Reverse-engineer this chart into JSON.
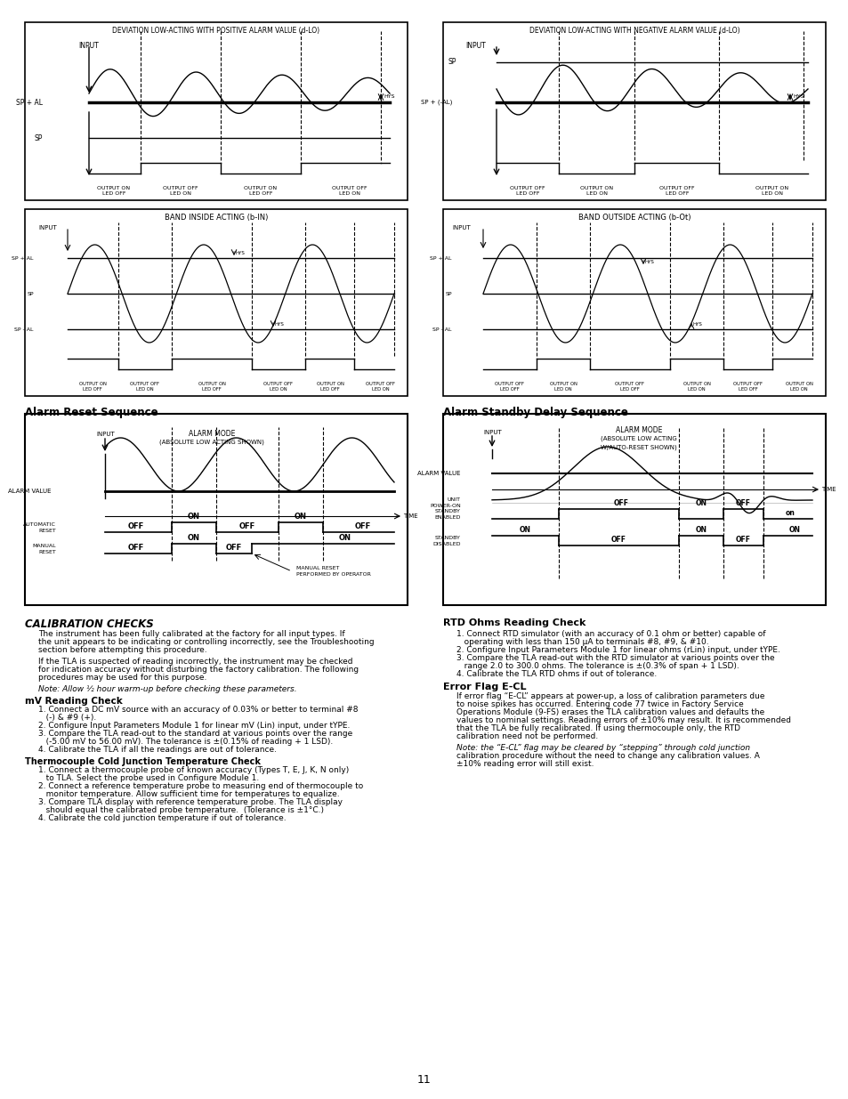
{
  "page_bg": "#ffffff",
  "border_color": "#000000",
  "text_color": "#000000",
  "title_top_left": "DEVIATION LOW-ACTING WITH POSITIVE ALARM VALUE (d-LO)",
  "title_top_right": "DEVIATION LOW-ACTING WITH NEGATIVE ALARM VALUE (d-LO)",
  "title_mid_left": "BAND INSIDE ACTING (b-IN)",
  "title_mid_right": "BAND OUTSIDE ACTING (b-Ot)",
  "section_alarm_reset": "Alarm Reset Sequence",
  "section_alarm_standby": "Alarm Standby Delay Sequence",
  "section_cal": "CALIBRATION CHECKS",
  "cal_p1": "The instrument has been fully calibrated at the factory for all input types. If the unit appears to be indicating or controlling incorrectly, see the Troubleshooting section before attempting this procedure.",
  "cal_p2": "If the TLA is suspected of reading incorrectly, the instrument may be checked for indication accuracy without disturbing the factory calibration. The following procedures may be used for this purpose.",
  "cal_note": "Note: Allow ½ hour warm-up before checking these parameters.",
  "mv_title": "mV Reading Check",
  "mv_text": "1. Connect a DC mV source with an accuracy of 0.03% or better to terminal #8 (-) & #9 (+).\n2. Configure Input Parameters Module 1 for linear mV (Lin) input, under tYPE.\n3. Compare the TLA read-out to the standard at various points over the range (-5.00 mV to 56.00 mV). The tolerance is ±(0.15% of reading + 1 LSD).\n4. Calibrate the TLA if all the readings are out of tolerance.",
  "tc_title": "Thermocouple Cold Junction Temperature Check",
  "tc_text": "1. Connect a thermocouple probe of known accuracy (Types T, E, J, K, N only) to TLA. Select the probe used in Configure Module 1.\n2. Connect a reference temperature probe to measuring end of thermocouple to monitor temperature. Allow sufficient time for temperatures to equalize.\n3. Compare TLA display with reference temperature probe. The TLA display should equal the calibrated probe temperature. (Tolerance is ±1°C.)\n4. Calibrate the cold junction temperature if out of tolerance.",
  "rtd_title": "RTD Ohms Reading Check",
  "rtd_text": "1. Connect RTD simulator (with an accuracy of 0.1 ohm or better) capable of operating with less than 150 μA to terminals #8, #9, & #10.\n2. Configure Input Parameters Module 1 for linear ohms (rLin) input, under tYPE.\n3. Compare the TLA read-out with the RTD simulator at various points over the range 2.0 to 300.0 ohms. The tolerance is ±(0.3% of span + 1 LSD).\n4. Calibrate the TLA RTD ohms if out of tolerance.",
  "ecl_title": "Error Flag E-CL",
  "ecl_text": "If error flag “E-CL” appears at power-up, a loss of calibration parameters due to noise spikes has occurred. Entering code 77 twice in Factory Service Operations Module (9-FS) erases the TLA calibration values and defaults the values to nominal settings. Reading errors of ±10% may result. It is recommended that the TLA be fully recalibrated. If using thermocouple only, the RTD calibration need not be performed.",
  "ecl_note": "Note: the “E-CL” flag may be cleared by “stepping” through cold junction calibration procedure without the need to change any calibration values. A ±10% reading error will still exist.",
  "page_number": "11"
}
